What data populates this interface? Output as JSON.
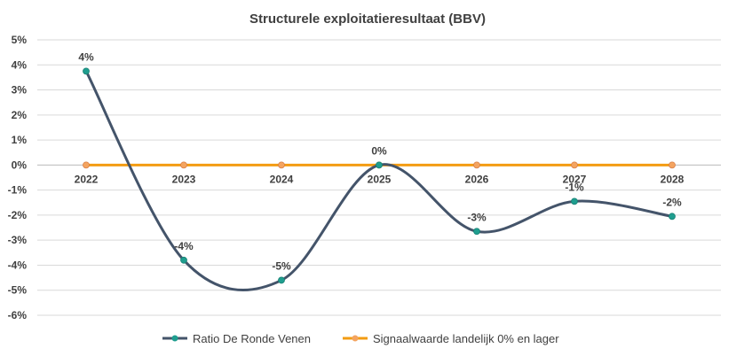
{
  "chart_data": {
    "type": "line",
    "title": "Structurele exploitatieresultaat (BBV)",
    "categories": [
      "2022",
      "2023",
      "2024",
      "2025",
      "2026",
      "2027",
      "2028"
    ],
    "y_ticks": [
      "5%",
      "4%",
      "3%",
      "2%",
      "1%",
      "0%",
      "-1%",
      "-2%",
      "-3%",
      "-4%",
      "-5%",
      "-6%"
    ],
    "ylim": [
      -6,
      5
    ],
    "grid": true,
    "legend_position": "bottom",
    "series": [
      {
        "name": "Ratio De Ronde Venen",
        "values": [
          3.75,
          -3.8,
          -4.6,
          0.0,
          -2.65,
          -1.45,
          -2.05
        ],
        "labels": [
          "4%",
          "-4%",
          "-5%",
          "0%",
          "-3%",
          "-1%",
          "-2%"
        ],
        "line_color": "#44546A",
        "marker_color": "#1F9E8F",
        "smooth": true
      },
      {
        "name": "Signaalwaarde landelijk 0% en lager",
        "values": [
          0,
          0,
          0,
          0,
          0,
          0,
          0
        ],
        "line_color": "#F39C12",
        "marker_color": "#F4A460",
        "smooth": false
      }
    ]
  }
}
